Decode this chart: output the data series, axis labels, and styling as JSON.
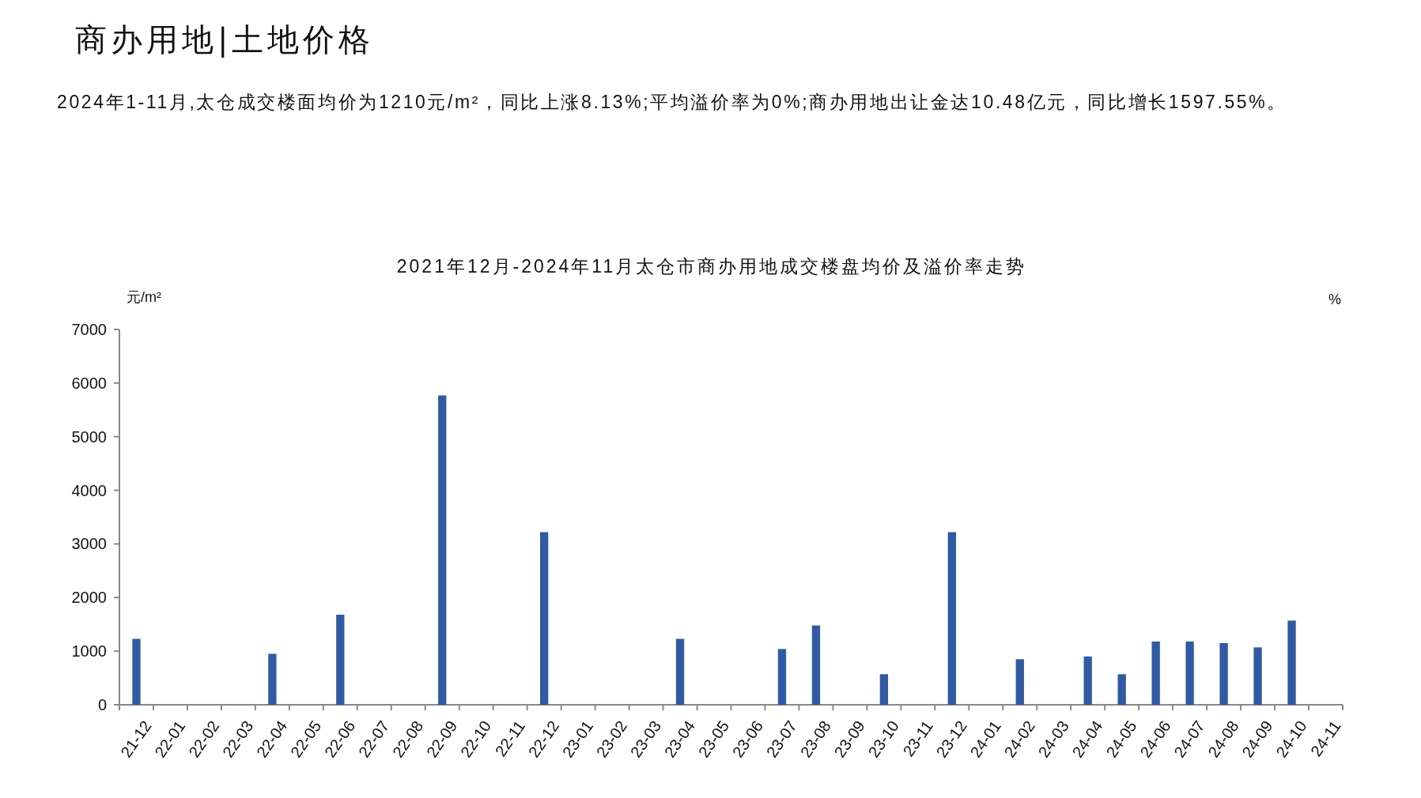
{
  "chart_data": {
    "type": "bar",
    "title": "2021年12月-2024年11月太仓市商办用地成交楼盘均价及溢价率走势",
    "subtitle": "2024年1-11月,太仓成交楼面均价为1210元/m²，同比上涨8.13%;平均溢价率为0%;商办用地出让金达10.48亿元，同比增长1597.55%。",
    "annotations": [
      "商办用地|土地价格"
    ],
    "ylabel": "元/m²",
    "y2label": "%",
    "categories": [
      "21-12",
      "22-01",
      "22-02",
      "22-03",
      "22-04",
      "22-05",
      "22-06",
      "22-07",
      "22-08",
      "22-09",
      "22-10",
      "22-11",
      "22-12",
      "23-01",
      "23-02",
      "23-03",
      "23-04",
      "23-05",
      "23-06",
      "23-07",
      "23-08",
      "23-09",
      "23-10",
      "23-11",
      "23-12",
      "24-01",
      "24-02",
      "24-03",
      "24-04",
      "24-05",
      "24-06",
      "24-07",
      "24-08",
      "24-09",
      "24-10",
      "24-11"
    ],
    "values": [
      1230,
      null,
      null,
      null,
      950,
      null,
      1680,
      null,
      null,
      5770,
      null,
      null,
      3220,
      null,
      null,
      null,
      1230,
      null,
      null,
      1040,
      1480,
      null,
      570,
      null,
      3220,
      null,
      850,
      null,
      900,
      570,
      1180,
      1180,
      1150,
      1070,
      1570,
      null
    ],
    "color": "#2f5aa6",
    "ylim": [
      0,
      7000
    ],
    "yticks": [
      0,
      1000,
      2000,
      3000,
      4000,
      5000,
      6000,
      7000
    ]
  }
}
